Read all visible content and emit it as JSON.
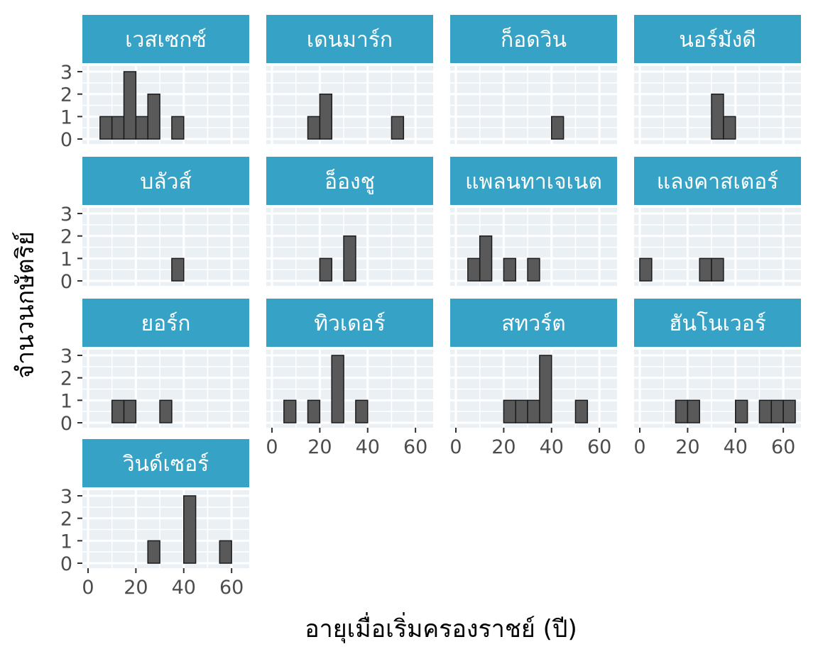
{
  "chart_data": {
    "type": "bar",
    "subtype": "faceted-histogram",
    "xlabel": "อายุเมื่อเริ่มครองราชย์ (ปี)",
    "ylabel": "จำนวนกษัตริย์",
    "xlim": [
      0,
      65
    ],
    "ylim": [
      0,
      3
    ],
    "x_ticks": [
      0,
      20,
      40,
      60
    ],
    "y_ticks": [
      0,
      1,
      2,
      3
    ],
    "bin_width": 5,
    "grid": true,
    "colors": {
      "panel_bg": "#ebf0f5",
      "grid": "#ffffff",
      "strip_bg": "#36a3c6",
      "strip_text": "#ffffff",
      "bar": "#595959",
      "bar_edge": "#1a1a1a"
    },
    "facets": [
      {
        "name": "เวสเซกซ์",
        "bins": [
          {
            "x0": 5,
            "count": 1
          },
          {
            "x0": 10,
            "count": 1
          },
          {
            "x0": 15,
            "count": 3
          },
          {
            "x0": 20,
            "count": 1
          },
          {
            "x0": 25,
            "count": 2
          },
          {
            "x0": 35,
            "count": 1
          }
        ]
      },
      {
        "name": "เดนมาร์ก",
        "bins": [
          {
            "x0": 15,
            "count": 1
          },
          {
            "x0": 20,
            "count": 2
          },
          {
            "x0": 50,
            "count": 1
          }
        ]
      },
      {
        "name": "ก็อดวิน",
        "bins": [
          {
            "x0": 40,
            "count": 1
          }
        ]
      },
      {
        "name": "นอร์มังดี",
        "bins": [
          {
            "x0": 30,
            "count": 2
          },
          {
            "x0": 35,
            "count": 1
          }
        ]
      },
      {
        "name": "บลัวส์",
        "bins": [
          {
            "x0": 35,
            "count": 1
          }
        ]
      },
      {
        "name": "อ็องชู",
        "bins": [
          {
            "x0": 20,
            "count": 1
          },
          {
            "x0": 30,
            "count": 2
          }
        ]
      },
      {
        "name": "แพลนทาเจเนต",
        "bins": [
          {
            "x0": 5,
            "count": 1
          },
          {
            "x0": 10,
            "count": 2
          },
          {
            "x0": 20,
            "count": 1
          },
          {
            "x0": 30,
            "count": 1
          }
        ]
      },
      {
        "name": "แลงคาสเตอร์",
        "bins": [
          {
            "x0": 0,
            "count": 1
          },
          {
            "x0": 25,
            "count": 1
          },
          {
            "x0": 30,
            "count": 1
          }
        ]
      },
      {
        "name": "ยอร์ก",
        "bins": [
          {
            "x0": 10,
            "count": 1
          },
          {
            "x0": 15,
            "count": 1
          },
          {
            "x0": 30,
            "count": 1
          }
        ]
      },
      {
        "name": "ทิวเดอร์",
        "bins": [
          {
            "x0": 5,
            "count": 1
          },
          {
            "x0": 15,
            "count": 1
          },
          {
            "x0": 25,
            "count": 3
          },
          {
            "x0": 35,
            "count": 1
          }
        ]
      },
      {
        "name": "สทวร์ต",
        "bins": [
          {
            "x0": 20,
            "count": 1
          },
          {
            "x0": 25,
            "count": 1
          },
          {
            "x0": 30,
            "count": 1
          },
          {
            "x0": 35,
            "count": 3
          },
          {
            "x0": 50,
            "count": 1
          }
        ]
      },
      {
        "name": "ฮันโนเวอร์",
        "bins": [
          {
            "x0": 15,
            "count": 1
          },
          {
            "x0": 20,
            "count": 1
          },
          {
            "x0": 40,
            "count": 1
          },
          {
            "x0": 50,
            "count": 1
          },
          {
            "x0": 55,
            "count": 1
          },
          {
            "x0": 60,
            "count": 1
          }
        ]
      },
      {
        "name": "วินด์เซอร์",
        "bins": [
          {
            "x0": 25,
            "count": 1
          },
          {
            "x0": 40,
            "count": 3
          },
          {
            "x0": 55,
            "count": 1
          }
        ]
      }
    ]
  }
}
